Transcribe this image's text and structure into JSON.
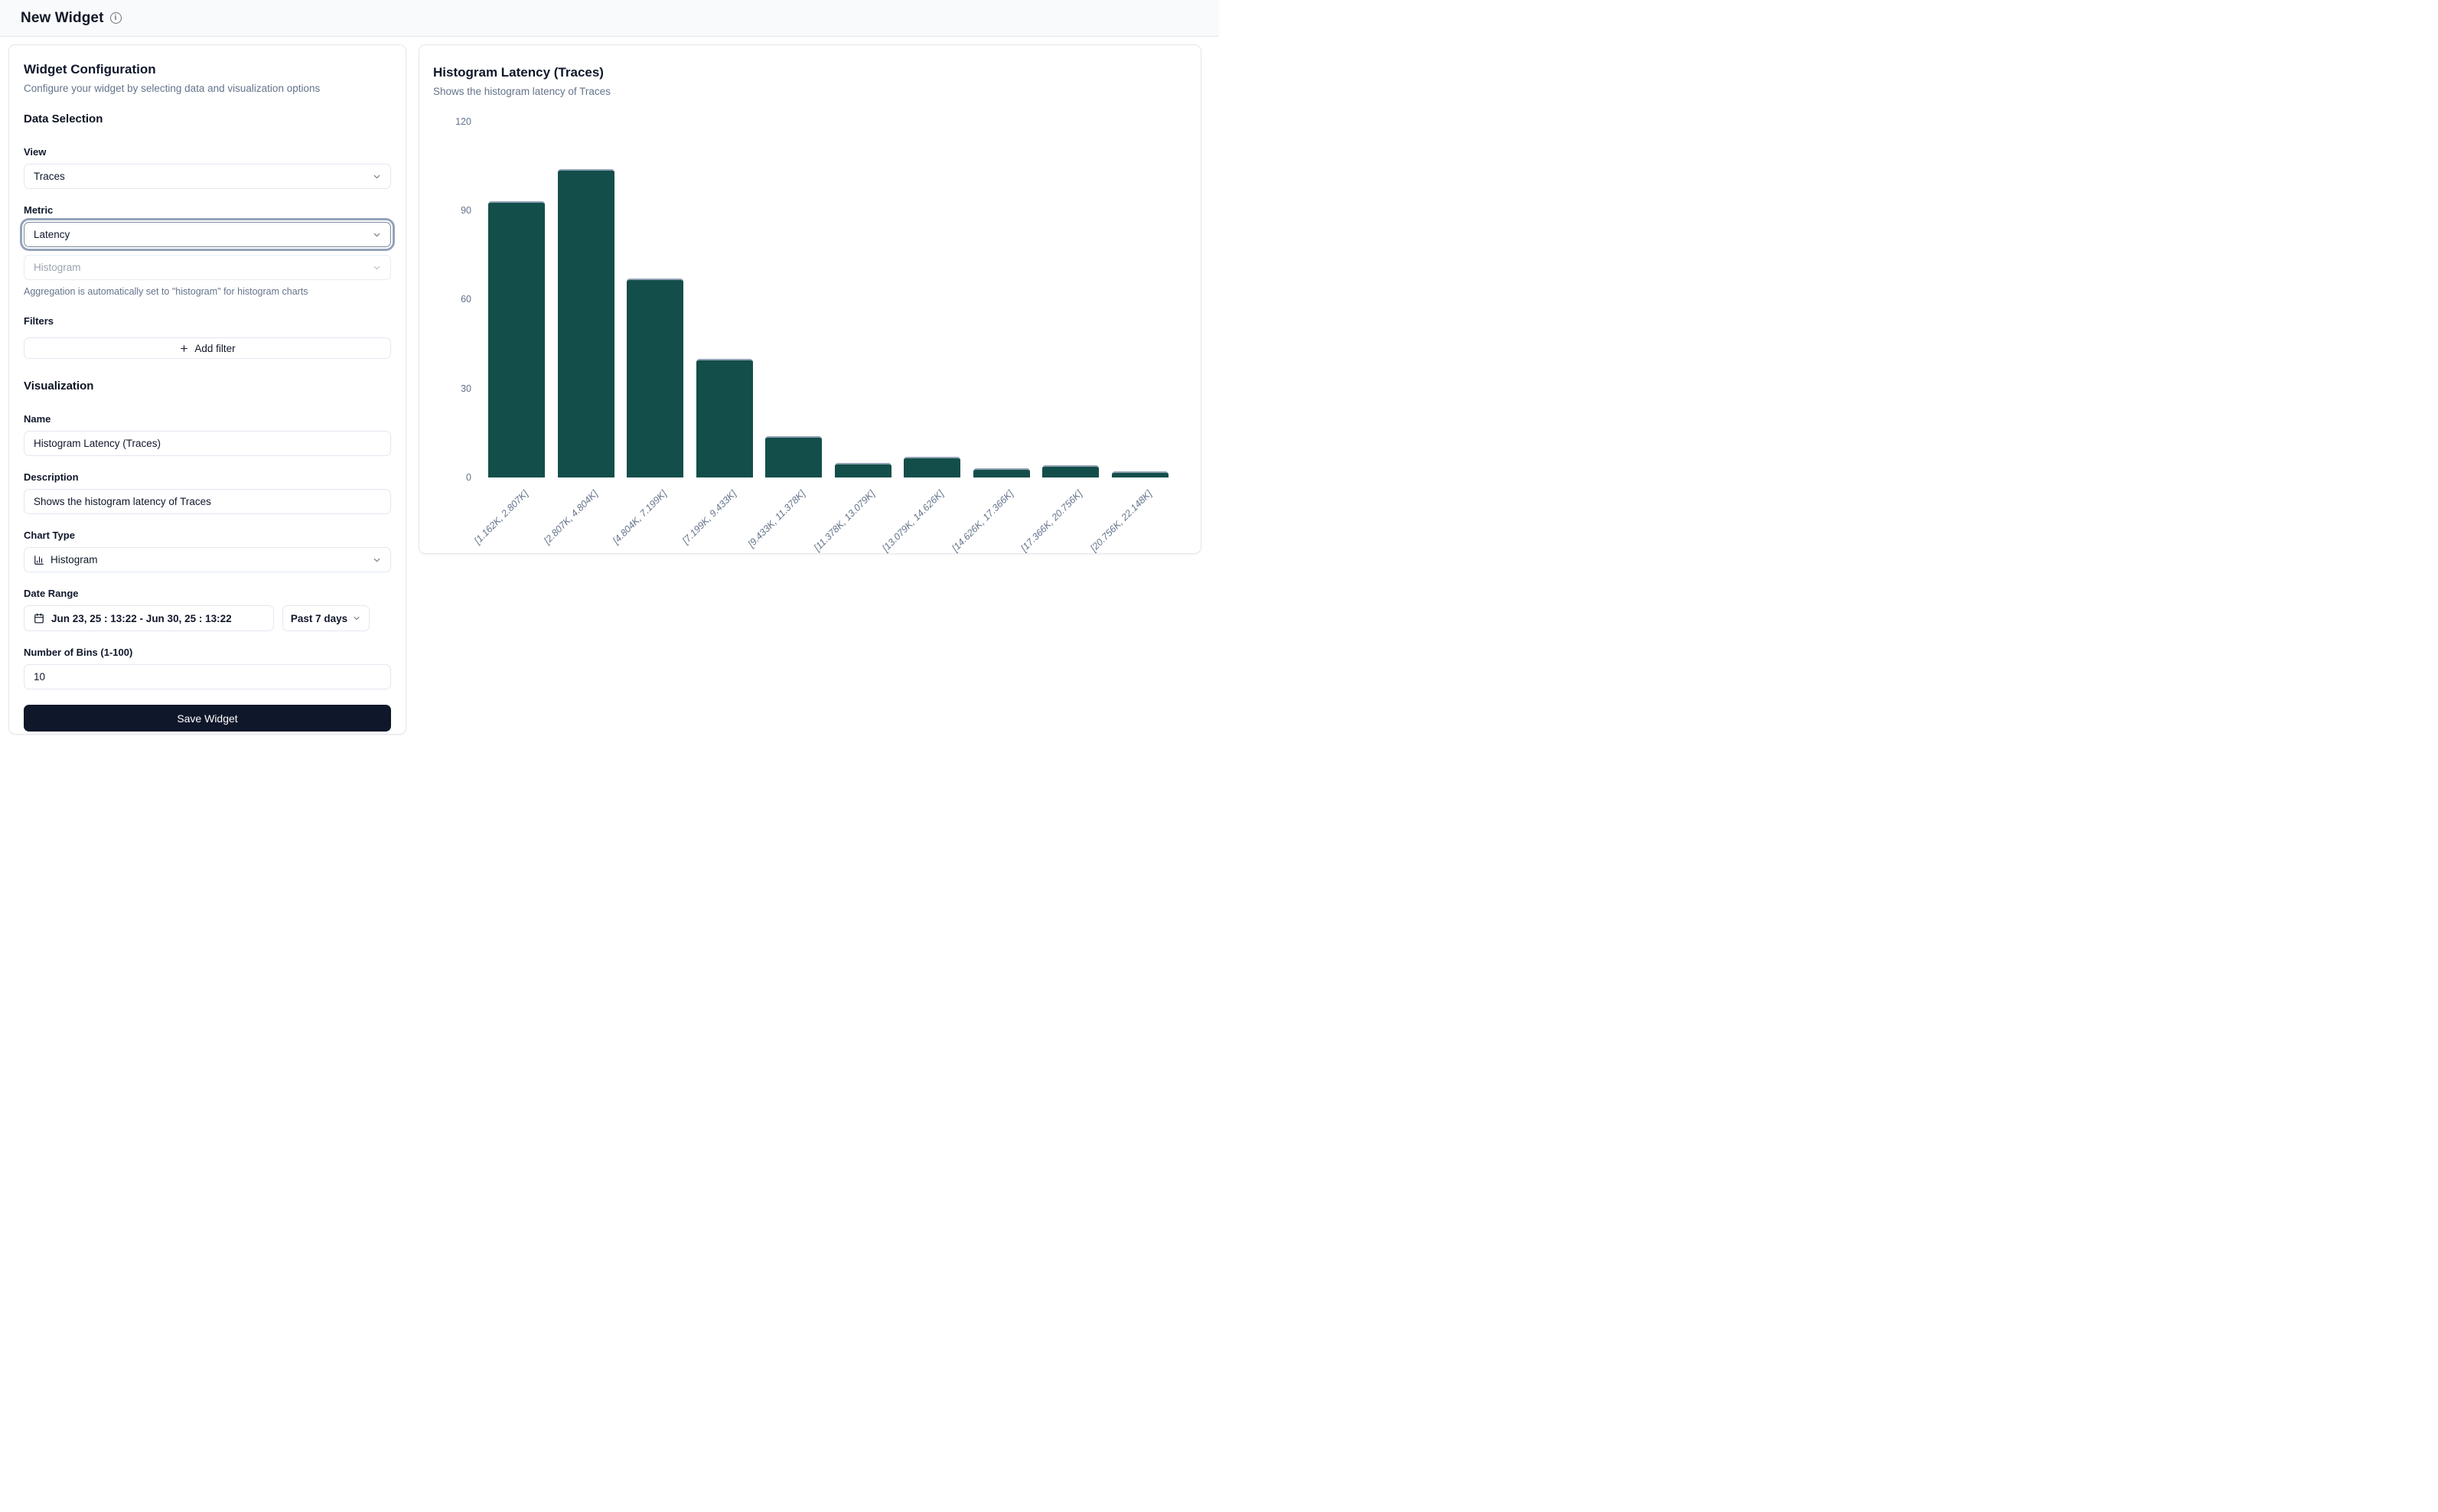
{
  "header": {
    "title": "New Widget",
    "info_icon": "info-icon"
  },
  "config_panel": {
    "title": "Widget Configuration",
    "subtitle": "Configure your widget by selecting data and visualization options",
    "data_selection": {
      "heading": "Data Selection",
      "view_label": "View",
      "view_value": "Traces",
      "metric_label": "Metric",
      "metric_value": "Latency",
      "aggregation_value": "Histogram",
      "aggregation_help": "Aggregation is automatically set to \"histogram\" for histogram charts",
      "filters_label": "Filters",
      "add_filter_label": "Add filter",
      "add_filter_icon": "plus-icon"
    },
    "visualization": {
      "heading": "Visualization",
      "name_label": "Name",
      "name_value": "Histogram Latency (Traces)",
      "description_label": "Description",
      "description_value": "Shows the histogram latency of Traces",
      "chart_type_label": "Chart Type",
      "chart_type_value": "Histogram",
      "chart_type_icon": "chart-column-icon",
      "date_range_label": "Date Range",
      "date_range_value": "Jun 23, 25 : 13:22 - Jun 30, 25 : 13:22",
      "date_range_icon": "calendar-icon",
      "date_preset_value": "Past 7 days",
      "bins_label": "Number of Bins (1-100)",
      "bins_value": "10"
    },
    "save_label": "Save Widget"
  },
  "chart_panel": {
    "title": "Histogram Latency (Traces)",
    "subtitle": "Shows the histogram latency of Traces"
  },
  "chart_data": {
    "type": "bar",
    "title": "Histogram Latency (Traces)",
    "categories": [
      "[1.162K, 2.807K]",
      "[2.807K, 4.804K]",
      "[4.804K, 7.199K]",
      "[7.199K, 9.433K]",
      "[9.433K, 11.378K]",
      "[11.378K, 13.079K]",
      "[13.079K, 14.626K]",
      "[14.626K, 17.366K]",
      "[17.366K, 20.756K]",
      "[20.756K, 22.148K]"
    ],
    "values": [
      93,
      104,
      67,
      40,
      14,
      5,
      7,
      3,
      4,
      2
    ],
    "xlabel": "",
    "ylabel": "",
    "yticks": [
      0,
      30,
      60,
      90,
      120
    ],
    "ylim": [
      0,
      120
    ],
    "grid": false,
    "legend": "none",
    "bar_color": "#134e4a",
    "bar_stroke_color": "#92a2b4",
    "axis_text_color": "#64748b"
  },
  "colors": {
    "accent_dark": "#0f172a",
    "muted_text": "#64748b",
    "border": "#e5e7eb",
    "header_bg": "#f9fafb"
  }
}
